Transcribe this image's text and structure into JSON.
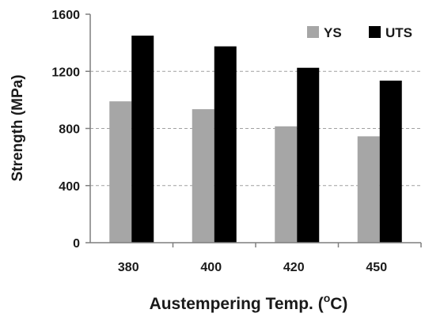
{
  "chart_data": {
    "type": "bar",
    "categories": [
      "380",
      "400",
      "420",
      "450"
    ],
    "series": [
      {
        "name": "YS",
        "values": [
          990,
          935,
          815,
          745
        ],
        "color": "#a6a6a6"
      },
      {
        "name": "UTS",
        "values": [
          1450,
          1375,
          1225,
          1135
        ],
        "color": "#000000"
      }
    ],
    "yticks": [
      "0",
      "400",
      "800",
      "1200",
      "1600"
    ],
    "ylim": [
      0,
      1600
    ],
    "ylabel": "Strength (MPa)",
    "xlabel_main": "Austempering Temp. (",
    "xlabel_sup": "o",
    "xlabel_end": "C)",
    "grid": "horizontal dashed",
    "legend_position": "top-right"
  }
}
